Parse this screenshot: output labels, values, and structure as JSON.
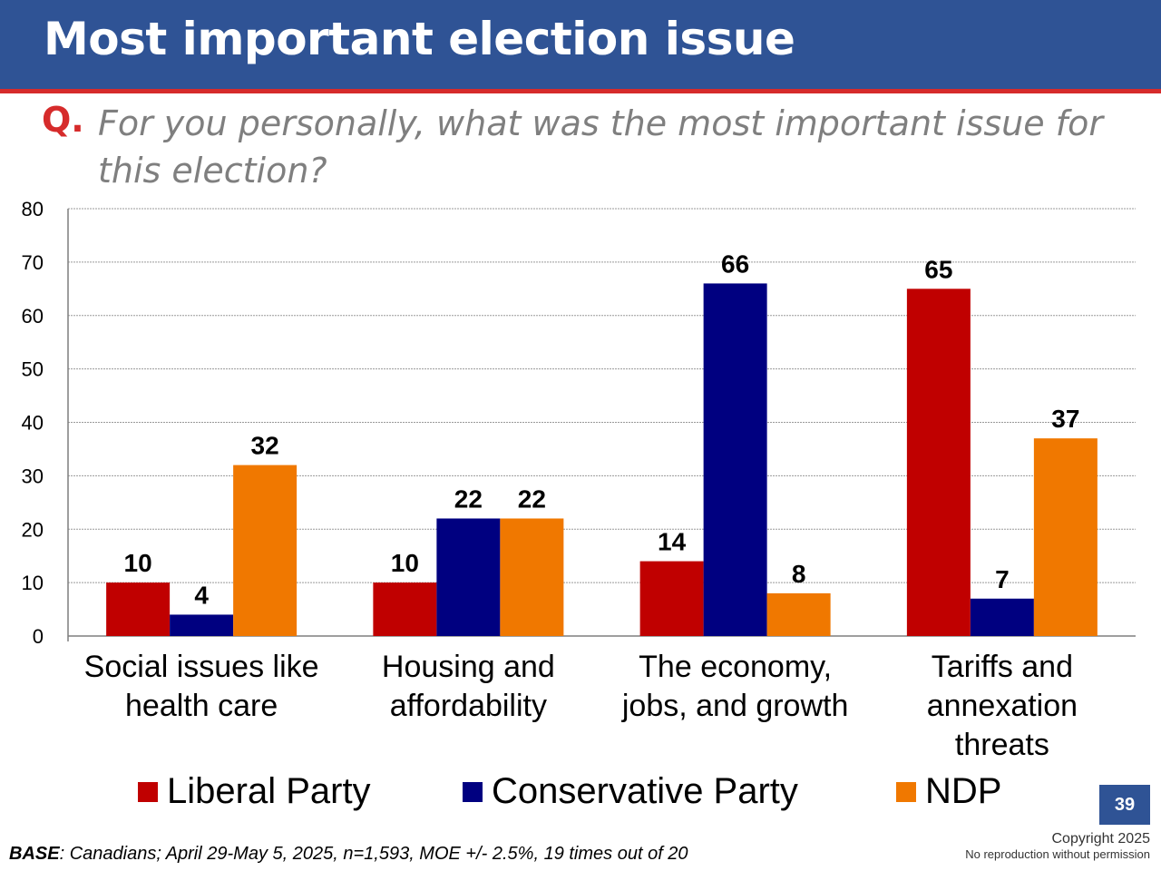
{
  "header": {
    "title": "Most important election issue"
  },
  "question": {
    "marker": "Q.",
    "text": "For you personally, what was the most important issue for this election?"
  },
  "chart_data": {
    "type": "bar",
    "categories": [
      [
        "Social issues like",
        "health care"
      ],
      [
        "Housing and",
        "affordability"
      ],
      [
        "The economy,",
        "jobs, and growth"
      ],
      [
        "Tariffs and",
        "annexation",
        "threats"
      ]
    ],
    "series": [
      {
        "name": "Liberal Party",
        "color": "#c00000",
        "values": [
          10,
          10,
          14,
          65
        ]
      },
      {
        "name": "Conservative Party",
        "color": "#000080",
        "values": [
          4,
          22,
          66,
          7
        ]
      },
      {
        "name": "NDP",
        "color": "#f07800",
        "values": [
          32,
          22,
          8,
          37
        ]
      }
    ],
    "ylim": [
      0,
      80
    ],
    "yticks": [
      0,
      10,
      20,
      30,
      40,
      50,
      60,
      70,
      80
    ],
    "grid": true,
    "data_labels": true,
    "legend_position": "bottom"
  },
  "footer": {
    "page_number": "39",
    "base_label": "BASE",
    "base_text": ": Canadians; April 29-May 5, 2025, n=1,593, MOE +/- 2.5%, 19 times out of 20",
    "copyright": "Copyright 2025",
    "no_reproduction": "No reproduction without permission"
  }
}
